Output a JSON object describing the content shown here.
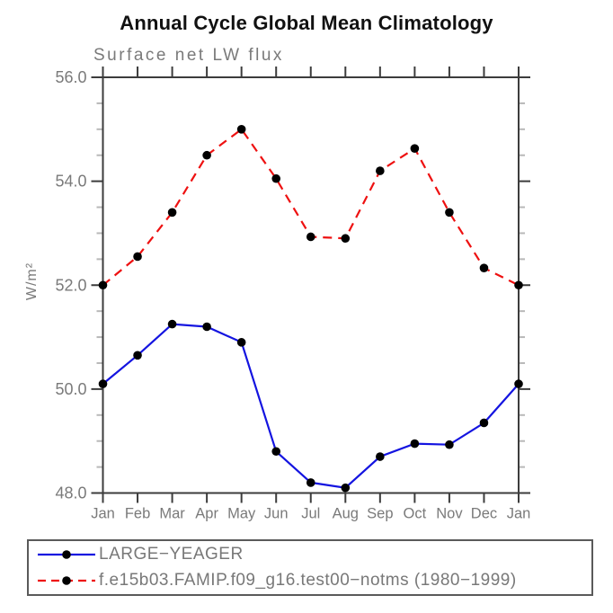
{
  "title": "Annual Cycle Global Mean Climatology",
  "chart_data": {
    "type": "line",
    "title": "Annual Cycle Global Mean Climatology",
    "subtitle": "Surface net LW flux",
    "ylabel": "W/m²",
    "xlabel": "",
    "x_tick_labels": [
      "Jan",
      "Feb",
      "Mar",
      "Apr",
      "May",
      "Jun",
      "Jul",
      "Aug",
      "Sep",
      "Oct",
      "Nov",
      "Dec",
      "Jan"
    ],
    "y_ticks": [
      48.0,
      50.0,
      52.0,
      54.0,
      56.0
    ],
    "y_tick_labels": [
      "48.0",
      "50.0",
      "52.0",
      "54.0",
      "56.0"
    ],
    "ylim": [
      48.0,
      56.0
    ],
    "y_minor_step": 0.5,
    "grid": "off",
    "legend_position": "bottom-left",
    "frame_color": "#3c3c3c",
    "minor_tick_color": "#b8b8b8",
    "tick_label_color": "#7a7a7a",
    "marker_color": "#000000",
    "series": [
      {
        "name": "LARGE−YEAGER",
        "color": "#1414e0",
        "style": "solid",
        "marker": "circle",
        "values": [
          50.1,
          50.65,
          51.25,
          51.2,
          50.9,
          48.8,
          48.2,
          48.1,
          48.7,
          48.95,
          48.93,
          49.35,
          50.1
        ]
      },
      {
        "name": "f.e15b03.FAMIP.f09_g16.test00−notms (1980−1999)",
        "color": "#ee1111",
        "style": "dashed",
        "marker": "circle",
        "values": [
          52.0,
          52.55,
          53.4,
          54.5,
          55.0,
          54.05,
          52.93,
          52.9,
          54.2,
          54.63,
          53.4,
          52.33,
          52.0
        ]
      }
    ]
  }
}
